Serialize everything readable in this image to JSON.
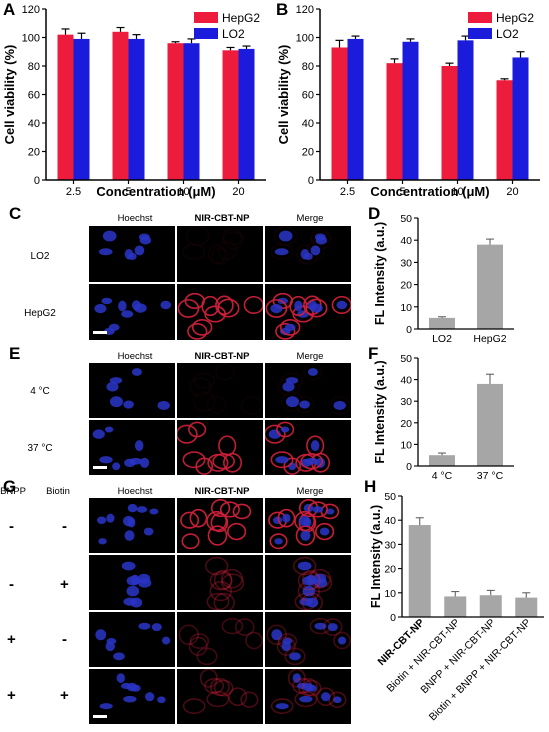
{
  "figure": {
    "panel_letters": {
      "A": "A",
      "B": "B",
      "C": "C",
      "D": "D",
      "E": "E",
      "F": "F",
      "G": "G",
      "H": "H"
    },
    "colors": {
      "hepg2": "#ee1c3c",
      "lo2": "#1b1bdc",
      "gray_bar": "#a6a6a6",
      "hoechst": "#2a35c8",
      "nir": "#d0203a"
    },
    "panel_C": {
      "headers": [
        "Hoechst",
        "NIR-CBT-NP",
        "Merge"
      ],
      "rows": [
        "LO2",
        "HepG2"
      ]
    },
    "panel_E": {
      "headers": [
        "Hoechst",
        "NIR-CBT-NP",
        "Merge"
      ],
      "rows": [
        "4 °C",
        "37 °C"
      ]
    },
    "panel_G": {
      "side_headers": [
        "BNPP",
        "Biotin"
      ],
      "headers": [
        "Hoechst",
        "NIR-CBT-NP",
        "Merge"
      ],
      "rows": [
        [
          "-",
          "-"
        ],
        [
          "-",
          "+"
        ],
        [
          "+",
          "-"
        ],
        [
          "+",
          "+"
        ]
      ]
    }
  },
  "chart_data": [
    {
      "panel": "A",
      "type": "bar",
      "categories": [
        "2.5",
        "5",
        "10",
        "20"
      ],
      "series": [
        {
          "name": "HepG2",
          "values": [
            102,
            104,
            96,
            91
          ],
          "errors": [
            4,
            3,
            1,
            2
          ]
        },
        {
          "name": "LO2",
          "values": [
            99,
            99,
            96,
            92
          ],
          "errors": [
            4,
            3,
            3,
            2
          ]
        }
      ],
      "xlabel": "Concentration (μM)",
      "ylabel": "Cell viability (%)",
      "ylim": [
        0,
        120
      ],
      "yticks": [
        0,
        20,
        40,
        60,
        80,
        100,
        120
      ],
      "legend": "top-right"
    },
    {
      "panel": "B",
      "type": "bar",
      "categories": [
        "2.5",
        "5",
        "10",
        "20"
      ],
      "series": [
        {
          "name": "HepG2",
          "values": [
            93,
            82,
            80,
            70
          ],
          "errors": [
            5,
            3,
            2,
            1
          ]
        },
        {
          "name": "LO2",
          "values": [
            99,
            97,
            98,
            86
          ],
          "errors": [
            2,
            2,
            3,
            4
          ]
        }
      ],
      "xlabel": "Concentration (μM)",
      "ylabel": "Cell viability (%)",
      "ylim": [
        0,
        120
      ],
      "yticks": [
        0,
        20,
        40,
        60,
        80,
        100,
        120
      ],
      "legend": "top-right"
    },
    {
      "panel": "D",
      "type": "bar",
      "categories": [
        "LO2",
        "HepG2"
      ],
      "values": [
        5,
        38
      ],
      "errors": [
        0.5,
        2.5
      ],
      "ylabel": "FL Intensity (a.u.)",
      "ylim": [
        0,
        50
      ],
      "yticks": [
        0,
        10,
        20,
        30,
        40,
        50
      ]
    },
    {
      "panel": "F",
      "type": "bar",
      "categories": [
        "4 °C",
        "37 °C"
      ],
      "values": [
        5,
        38
      ],
      "errors": [
        1,
        4.5
      ],
      "ylabel": "FL Intensity (a.u.)",
      "ylim": [
        0,
        50
      ],
      "yticks": [
        0,
        10,
        20,
        30,
        40,
        50
      ]
    },
    {
      "panel": "H",
      "type": "bar",
      "categories": [
        "NIR-CBT-NP",
        "Biotin + NIR-CBT-NP",
        "BNPP + NIR-CBT-NP",
        "Biotin + BNPP + NIR-CBT-NP"
      ],
      "values": [
        38,
        8.5,
        9,
        8
      ],
      "errors": [
        3,
        2,
        2,
        2
      ],
      "ylabel": "FL Intensity (a.u.)",
      "ylim": [
        0,
        50
      ],
      "yticks": [
        0,
        10,
        20,
        30,
        40,
        50
      ]
    }
  ]
}
